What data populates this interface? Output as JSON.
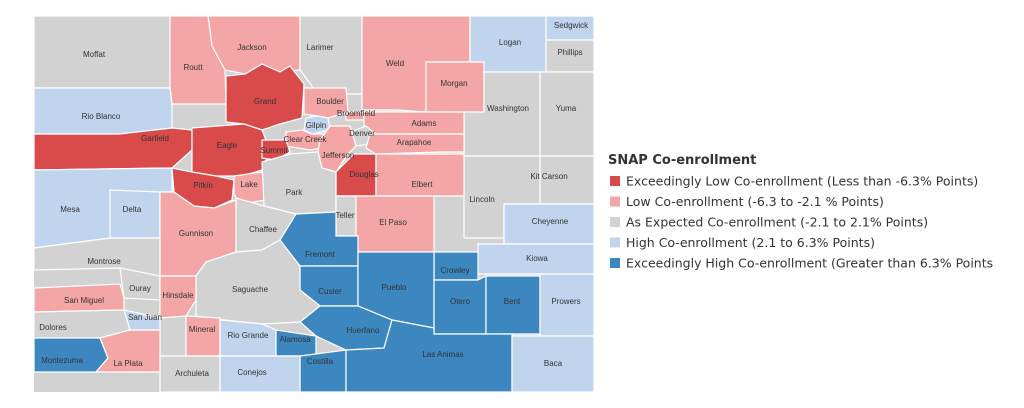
{
  "colors": {
    "exceedingly_low": "#d94b4b",
    "low": "#f4a6a6",
    "expected": "#d2d2d2",
    "high": "#c0d4ee",
    "exceedingly_high": "#3d87c1"
  },
  "legend": {
    "title": "SNAP Co-enrollment",
    "items": [
      {
        "key": "exceedingly_low",
        "label": "Exceedingly Low Co-enrollment (Less than -6.3% Points)"
      },
      {
        "key": "low",
        "label": "Low Co-enrollment (-6.3 to -2.1 % Points)"
      },
      {
        "key": "expected",
        "label": "As Expected Co-enrollment (-2.1 to 2.1% Points)"
      },
      {
        "key": "high",
        "label": "High Co-enrollment (2.1 to 6.3% Points)"
      },
      {
        "key": "exceedingly_high",
        "label": "Exceedingly High Co-enrollment (Greater than 6.3% Points"
      }
    ]
  },
  "counties": [
    {
      "name": "Moffat",
      "category": "expected"
    },
    {
      "name": "Jackson",
      "category": "low"
    },
    {
      "name": "Larimer",
      "category": "expected"
    },
    {
      "name": "Weld",
      "category": "low"
    },
    {
      "name": "Logan",
      "category": "high"
    },
    {
      "name": "Sedgwick",
      "category": "high"
    },
    {
      "name": "Phillips",
      "category": "expected"
    },
    {
      "name": "Routt",
      "category": "low"
    },
    {
      "name": "Grand",
      "category": "exceedingly_low"
    },
    {
      "name": "Morgan",
      "category": "low"
    },
    {
      "name": "Rio Blanco",
      "category": "high"
    },
    {
      "name": "Boulder",
      "category": "low"
    },
    {
      "name": "Broomfield",
      "category": "low"
    },
    {
      "name": "Washington",
      "category": "expected"
    },
    {
      "name": "Yuma",
      "category": "expected"
    },
    {
      "name": "Garfield",
      "category": "exceedingly_low"
    },
    {
      "name": "Eagle",
      "category": "exceedingly_low"
    },
    {
      "name": "Gilpin",
      "category": "high"
    },
    {
      "name": "Adams",
      "category": "low"
    },
    {
      "name": "Denver",
      "category": "expected"
    },
    {
      "name": "Clear Creek",
      "category": "low"
    },
    {
      "name": "Summit",
      "category": "exceedingly_low"
    },
    {
      "name": "Arapahoe",
      "category": "low"
    },
    {
      "name": "Jefferson",
      "category": "low"
    },
    {
      "name": "Kit Carson",
      "category": "expected"
    },
    {
      "name": "Douglas",
      "category": "exceedingly_low"
    },
    {
      "name": "Elbert",
      "category": "low"
    },
    {
      "name": "Pitkin",
      "category": "exceedingly_low"
    },
    {
      "name": "Lake",
      "category": "low"
    },
    {
      "name": "Park",
      "category": "expected"
    },
    {
      "name": "Mesa",
      "category": "high"
    },
    {
      "name": "Delta",
      "category": "high"
    },
    {
      "name": "Lincoln",
      "category": "expected"
    },
    {
      "name": "Teller",
      "category": "expected"
    },
    {
      "name": "El Paso",
      "category": "low"
    },
    {
      "name": "Cheyenne",
      "category": "high"
    },
    {
      "name": "Gunnison",
      "category": "low"
    },
    {
      "name": "Chaffee",
      "category": "expected"
    },
    {
      "name": "Fremont",
      "category": "exceedingly_high"
    },
    {
      "name": "Kiowa",
      "category": "high"
    },
    {
      "name": "Montrose",
      "category": "expected"
    },
    {
      "name": "Crowley",
      "category": "exceedingly_high"
    },
    {
      "name": "Ouray",
      "category": "expected"
    },
    {
      "name": "Custer",
      "category": "exceedingly_high"
    },
    {
      "name": "Pueblo",
      "category": "exceedingly_high"
    },
    {
      "name": "San Miguel",
      "category": "low"
    },
    {
      "name": "Hinsdale",
      "category": "low"
    },
    {
      "name": "Saguache",
      "category": "expected"
    },
    {
      "name": "Otero",
      "category": "exceedingly_high"
    },
    {
      "name": "Bent",
      "category": "exceedingly_high"
    },
    {
      "name": "Prowers",
      "category": "high"
    },
    {
      "name": "San Juan",
      "category": "high"
    },
    {
      "name": "Dolores",
      "category": "expected"
    },
    {
      "name": "Mineral",
      "category": "low"
    },
    {
      "name": "Rio Grande",
      "category": "high"
    },
    {
      "name": "Huerfano",
      "category": "exceedingly_high"
    },
    {
      "name": "Alamosa",
      "category": "exceedingly_high"
    },
    {
      "name": "Montezuma",
      "category": "exceedingly_high"
    },
    {
      "name": "La Plata",
      "category": "low"
    },
    {
      "name": "Costilla",
      "category": "exceedingly_high"
    },
    {
      "name": "Las Animas",
      "category": "exceedingly_high"
    },
    {
      "name": "Baca",
      "category": "high"
    },
    {
      "name": "Archuleta",
      "category": "expected"
    },
    {
      "name": "Conejos",
      "category": "high"
    }
  ]
}
